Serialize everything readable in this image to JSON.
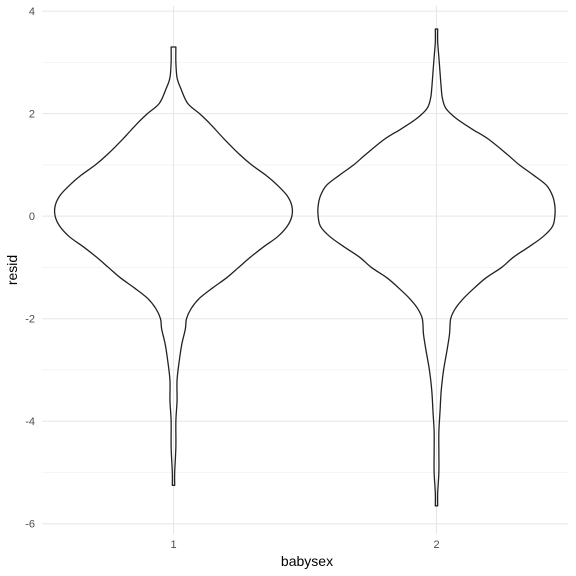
{
  "chart_data": {
    "type": "violin",
    "title": "",
    "xlabel": "babysex",
    "ylabel": "resid",
    "categories": [
      "1",
      "2"
    ],
    "ylim": [
      -6.2,
      4.1
    ],
    "y_ticks": [
      -6,
      -4,
      -2,
      0,
      2,
      4
    ],
    "grid": true,
    "legend": "none",
    "colors": {
      "outline": "#222222",
      "grid_major": "#e6e6e6",
      "grid_minor": "#f2f2f2",
      "tick_text": "#4d4d4d"
    },
    "violins": [
      {
        "category": "1",
        "y_min": -5.25,
        "y_max": 3.3,
        "profile": [
          [
            3.3,
            0.02
          ],
          [
            3.0,
            0.02
          ],
          [
            2.7,
            0.03
          ],
          [
            2.5,
            0.06
          ],
          [
            2.2,
            0.12
          ],
          [
            2.0,
            0.22
          ],
          [
            1.8,
            0.31
          ],
          [
            1.5,
            0.43
          ],
          [
            1.2,
            0.56
          ],
          [
            1.0,
            0.66
          ],
          [
            0.8,
            0.78
          ],
          [
            0.6,
            0.88
          ],
          [
            0.4,
            0.96
          ],
          [
            0.2,
            1.0
          ],
          [
            0.0,
            1.0
          ],
          [
            -0.2,
            0.96
          ],
          [
            -0.4,
            0.88
          ],
          [
            -0.6,
            0.76
          ],
          [
            -0.8,
            0.65
          ],
          [
            -1.0,
            0.55
          ],
          [
            -1.2,
            0.45
          ],
          [
            -1.4,
            0.33
          ],
          [
            -1.6,
            0.22
          ],
          [
            -1.8,
            0.15
          ],
          [
            -2.0,
            0.11
          ],
          [
            -2.2,
            0.1
          ],
          [
            -2.5,
            0.07
          ],
          [
            -2.8,
            0.05
          ],
          [
            -3.2,
            0.03
          ],
          [
            -3.6,
            0.03
          ],
          [
            -4.0,
            0.02
          ],
          [
            -4.5,
            0.02
          ],
          [
            -5.0,
            0.01
          ],
          [
            -5.25,
            0.01
          ]
        ]
      },
      {
        "category": "2",
        "y_min": -5.65,
        "y_max": 3.65,
        "profile": [
          [
            3.65,
            0.01
          ],
          [
            3.4,
            0.01
          ],
          [
            3.1,
            0.02
          ],
          [
            2.8,
            0.03
          ],
          [
            2.5,
            0.04
          ],
          [
            2.3,
            0.05
          ],
          [
            2.1,
            0.08
          ],
          [
            1.9,
            0.17
          ],
          [
            1.7,
            0.3
          ],
          [
            1.5,
            0.44
          ],
          [
            1.2,
            0.6
          ],
          [
            1.0,
            0.7
          ],
          [
            0.8,
            0.82
          ],
          [
            0.6,
            0.93
          ],
          [
            0.4,
            0.98
          ],
          [
            0.2,
            1.0
          ],
          [
            0.0,
            1.0
          ],
          [
            -0.2,
            0.98
          ],
          [
            -0.4,
            0.9
          ],
          [
            -0.6,
            0.78
          ],
          [
            -0.8,
            0.65
          ],
          [
            -1.0,
            0.55
          ],
          [
            -1.2,
            0.42
          ],
          [
            -1.4,
            0.32
          ],
          [
            -1.6,
            0.23
          ],
          [
            -1.8,
            0.16
          ],
          [
            -2.0,
            0.12
          ],
          [
            -2.3,
            0.11
          ],
          [
            -2.6,
            0.09
          ],
          [
            -3.0,
            0.06
          ],
          [
            -3.4,
            0.04
          ],
          [
            -3.8,
            0.03
          ],
          [
            -4.2,
            0.02
          ],
          [
            -4.6,
            0.02
          ],
          [
            -5.0,
            0.02
          ],
          [
            -5.4,
            0.01
          ],
          [
            -5.65,
            0.01
          ]
        ]
      }
    ]
  }
}
